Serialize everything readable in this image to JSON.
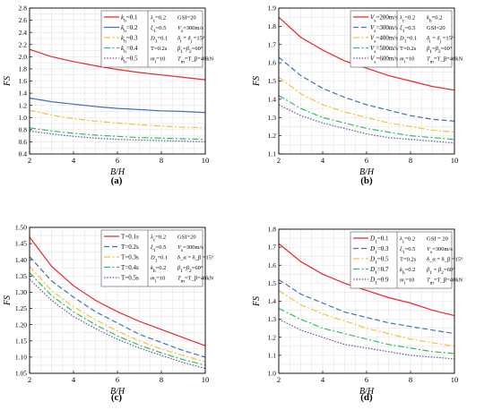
{
  "chart_data": [
    {
      "panel": "(a)",
      "type": "line",
      "xlabel": "B/H",
      "ylabel": "FS",
      "xlim": [
        2,
        10
      ],
      "ylim": [
        0.4,
        2.8
      ],
      "xticks": [
        "2",
        "4",
        "6",
        "8",
        "10"
      ],
      "yticks": [
        "0.4",
        "0.6",
        "0.8",
        "1.0",
        "1.2",
        "1.4",
        "1.6",
        "1.8",
        "2.0",
        "2.2",
        "2.4",
        "2.6",
        "2.8"
      ],
      "grid": true,
      "legend_position": "top-right",
      "params": [
        "λ_c=0.2",
        "GSI=20",
        "ξ_1=0.5",
        "V_s=300m/s",
        "D_1=0.1",
        "δ_i = δ_j =15°",
        "T=0.2s",
        "β_1=β_2=60°",
        "m_i=10",
        "T_m=T_β=40kN"
      ],
      "series": [
        {
          "name": "k_h=0.1",
          "color": "#e8262b",
          "dash": "solid",
          "x": [
            2,
            3,
            4,
            5,
            6,
            7,
            8,
            9,
            10
          ],
          "y": [
            2.12,
            2.0,
            1.92,
            1.85,
            1.79,
            1.74,
            1.7,
            1.66,
            1.62
          ]
        },
        {
          "name": "k_h=0.2",
          "color": "#3f72b8",
          "dash": "solid",
          "x": [
            2,
            3,
            4,
            5,
            6,
            7,
            8,
            9,
            10
          ],
          "y": [
            1.32,
            1.26,
            1.22,
            1.18,
            1.15,
            1.13,
            1.11,
            1.1,
            1.08
          ]
        },
        {
          "name": "k_h=0.3",
          "color": "#f4c13a",
          "dash": "dashdot",
          "x": [
            2,
            3,
            4,
            5,
            6,
            7,
            8,
            9,
            10
          ],
          "y": [
            1.12,
            1.04,
            0.98,
            0.94,
            0.91,
            0.88,
            0.86,
            0.84,
            0.83
          ]
        },
        {
          "name": "k_h=0.4",
          "color": "#2fbf60",
          "dash": "dashdot",
          "x": [
            2,
            3,
            4,
            5,
            6,
            7,
            8,
            9,
            10
          ],
          "y": [
            0.83,
            0.78,
            0.74,
            0.71,
            0.69,
            0.67,
            0.66,
            0.65,
            0.64
          ]
        },
        {
          "name": "k_h=0.5",
          "color": "#6a5aa6",
          "dash": "dotted",
          "x": [
            2,
            3,
            4,
            5,
            6,
            7,
            8,
            9,
            10
          ],
          "y": [
            0.78,
            0.73,
            0.69,
            0.66,
            0.64,
            0.63,
            0.62,
            0.61,
            0.6
          ]
        }
      ]
    },
    {
      "panel": "(b)",
      "type": "line",
      "xlabel": "B/H",
      "ylabel": "FS",
      "xlim": [
        2,
        10
      ],
      "ylim": [
        1.1,
        1.9
      ],
      "xticks": [
        "2",
        "4",
        "6",
        "8",
        "10"
      ],
      "yticks": [
        "1.1",
        "1.2",
        "1.3",
        "1.4",
        "1.5",
        "1.6",
        "1.7",
        "1.8",
        "1.9"
      ],
      "grid": true,
      "legend_position": "top-right",
      "params": [
        "λ_c=0.2",
        "k_h=0.2",
        "ξ_1=0.5",
        "GSI=20",
        "D_1=0.1",
        "δ_i = δ_j =15°",
        "T=0.2s",
        "β_1=β_2=60°",
        "m_i=10",
        "T_m=T_β=40kN"
      ],
      "series": [
        {
          "name": "V_s=200m/s",
          "color": "#e8262b",
          "dash": "solid",
          "x": [
            2,
            3,
            4,
            5,
            6,
            7,
            8,
            9,
            10
          ],
          "y": [
            1.85,
            1.74,
            1.67,
            1.61,
            1.57,
            1.53,
            1.5,
            1.47,
            1.45
          ]
        },
        {
          "name": "V_s=300m/s",
          "color": "#3f72b8",
          "dash": "dashed",
          "x": [
            2,
            3,
            4,
            5,
            6,
            7,
            8,
            9,
            10
          ],
          "y": [
            1.63,
            1.53,
            1.46,
            1.41,
            1.37,
            1.34,
            1.31,
            1.29,
            1.28
          ]
        },
        {
          "name": "V_s=400m/s",
          "color": "#f4c13a",
          "dash": "dashdot",
          "x": [
            2,
            3,
            4,
            5,
            6,
            7,
            8,
            9,
            10
          ],
          "y": [
            1.52,
            1.43,
            1.37,
            1.33,
            1.3,
            1.27,
            1.25,
            1.23,
            1.22
          ]
        },
        {
          "name": "V_s=500m/s",
          "color": "#2fbf60",
          "dash": "dashdot",
          "x": [
            2,
            3,
            4,
            5,
            6,
            7,
            8,
            9,
            10
          ],
          "y": [
            1.42,
            1.35,
            1.3,
            1.27,
            1.24,
            1.22,
            1.2,
            1.19,
            1.18
          ]
        },
        {
          "name": "V_s=600m/s",
          "color": "#6a5aa6",
          "dash": "dotted",
          "x": [
            2,
            3,
            4,
            5,
            6,
            7,
            8,
            9,
            10
          ],
          "y": [
            1.37,
            1.31,
            1.27,
            1.24,
            1.21,
            1.19,
            1.18,
            1.17,
            1.16
          ]
        }
      ]
    },
    {
      "panel": "(c)",
      "type": "line",
      "xlabel": "B/H",
      "ylabel": "FS",
      "xlim": [
        2,
        10
      ],
      "ylim": [
        1.05,
        1.5
      ],
      "xticks": [
        "2",
        "4",
        "6",
        "8",
        "10"
      ],
      "yticks": [
        "1.05",
        "1.10",
        "1.15",
        "1.20",
        "1.25",
        "1.30",
        "1.35",
        "1.40",
        "1.45",
        "1.50"
      ],
      "grid": true,
      "legend_position": "top-right",
      "params": [
        "λ_c=0.2",
        "GSI=20",
        "ξ_1=0.5",
        "V_s=300m/s",
        "D_1=0.1",
        "δ_α = δ_β =15°",
        "k_h=0.2",
        "β_1=β_2=60°",
        "m_i=10",
        "T_m=T_β=40kN"
      ],
      "series": [
        {
          "name": "T=0.1s",
          "color": "#e8262b",
          "dash": "solid",
          "x": [
            2,
            3,
            4,
            5,
            6,
            7,
            8,
            9,
            10
          ],
          "y": [
            1.47,
            1.38,
            1.32,
            1.275,
            1.24,
            1.21,
            1.185,
            1.16,
            1.135
          ]
        },
        {
          "name": "T=0.2s",
          "color": "#3f72b8",
          "dash": "dashed",
          "x": [
            2,
            3,
            4,
            5,
            6,
            7,
            8,
            9,
            10
          ],
          "y": [
            1.41,
            1.335,
            1.285,
            1.24,
            1.205,
            1.17,
            1.145,
            1.12,
            1.1
          ]
        },
        {
          "name": "T=0.3s",
          "color": "#f4c13a",
          "dash": "dashdot",
          "x": [
            2,
            3,
            4,
            5,
            6,
            7,
            8,
            9,
            10
          ],
          "y": [
            1.38,
            1.305,
            1.255,
            1.215,
            1.18,
            1.15,
            1.125,
            1.105,
            1.085
          ]
        },
        {
          "name": "T=0.4s",
          "color": "#2fbf60",
          "dash": "dashdot",
          "x": [
            2,
            3,
            4,
            5,
            6,
            7,
            8,
            9,
            10
          ],
          "y": [
            1.36,
            1.29,
            1.24,
            1.2,
            1.165,
            1.137,
            1.113,
            1.092,
            1.075
          ]
        },
        {
          "name": "T=0.5s",
          "color": "#6a5aa6",
          "dash": "dotted",
          "x": [
            2,
            3,
            4,
            5,
            6,
            7,
            8,
            9,
            10
          ],
          "y": [
            1.34,
            1.275,
            1.225,
            1.188,
            1.155,
            1.128,
            1.105,
            1.083,
            1.065
          ]
        }
      ]
    },
    {
      "panel": "(d)",
      "type": "line",
      "xlabel": "B/H",
      "ylabel": "FS",
      "xlim": [
        2,
        10
      ],
      "ylim": [
        1.0,
        1.8
      ],
      "xticks": [
        "2",
        "4",
        "6",
        "8",
        "10"
      ],
      "yticks": [
        "1.0",
        "1.1",
        "1.2",
        "1.3",
        "1.4",
        "1.5",
        "1.6",
        "1.7",
        "1.8"
      ],
      "grid": true,
      "legend_position": "top-right",
      "params": [
        "λ_c=0.2",
        "GSI = 20",
        "ξ_1=0.5",
        "V_s=300m/s",
        "T=0.2s",
        "δ_α = δ_β =15°",
        "k_h=0.2",
        "β_1 = β_2=60°",
        "m_i=10",
        "T_m=T_β=40kN"
      ],
      "series": [
        {
          "name": "D_1=0.1",
          "color": "#e8262b",
          "dash": "solid",
          "x": [
            2,
            3,
            4,
            5,
            6,
            7,
            8,
            9,
            10
          ],
          "y": [
            1.72,
            1.62,
            1.55,
            1.5,
            1.46,
            1.42,
            1.39,
            1.35,
            1.32
          ]
        },
        {
          "name": "D_1=0.3",
          "color": "#3f72b8",
          "dash": "dashed",
          "x": [
            2,
            3,
            4,
            5,
            6,
            7,
            8,
            9,
            10
          ],
          "y": [
            1.52,
            1.44,
            1.39,
            1.34,
            1.31,
            1.28,
            1.26,
            1.24,
            1.22
          ]
        },
        {
          "name": "D_1=0.5",
          "color": "#f4c13a",
          "dash": "dashdot",
          "x": [
            2,
            3,
            4,
            5,
            6,
            7,
            8,
            9,
            10
          ],
          "y": [
            1.46,
            1.38,
            1.33,
            1.29,
            1.25,
            1.22,
            1.19,
            1.17,
            1.15
          ]
        },
        {
          "name": "D_1=0.7",
          "color": "#2fbf60",
          "dash": "dashdot",
          "x": [
            2,
            3,
            4,
            5,
            6,
            7,
            8,
            9,
            10
          ],
          "y": [
            1.36,
            1.3,
            1.25,
            1.22,
            1.19,
            1.16,
            1.14,
            1.12,
            1.11
          ]
        },
        {
          "name": "D_1=0.9",
          "color": "#6a5aa6",
          "dash": "dotted",
          "x": [
            2,
            3,
            4,
            5,
            6,
            7,
            8,
            9,
            10
          ],
          "y": [
            1.3,
            1.24,
            1.2,
            1.16,
            1.14,
            1.12,
            1.1,
            1.09,
            1.08
          ]
        }
      ]
    }
  ]
}
